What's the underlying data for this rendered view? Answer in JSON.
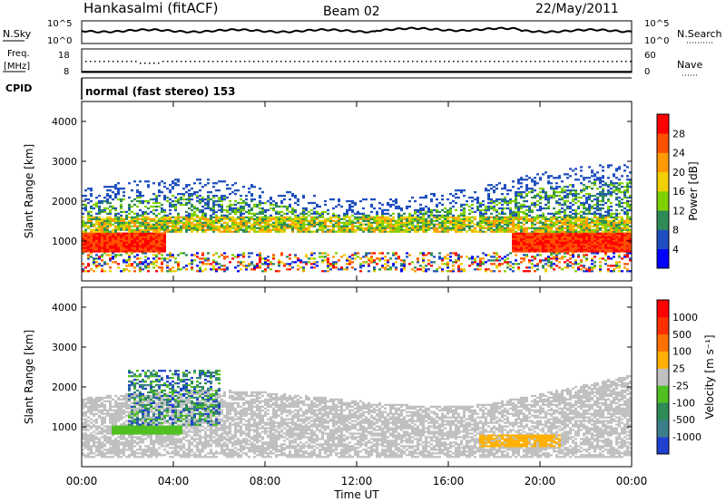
{
  "header": {
    "station": "Hankasalmi (fitACF)",
    "beam": "Beam 02",
    "date": "22/May/2011"
  },
  "top_panel": {
    "left_label": "N.Sky",
    "right_label": "N.Search",
    "left_ticks": [
      "10^5",
      "10^0"
    ],
    "right_ticks": [
      "10^5",
      "10^0"
    ]
  },
  "freq_panel": {
    "left_label_1": "Freq.",
    "left_label_2": "[MHz]",
    "right_label": "Nave",
    "left_ticks": [
      "18",
      "8"
    ],
    "right_ticks": [
      "60",
      "0"
    ]
  },
  "cpid": {
    "label": "CPID",
    "value": "normal (fast stereo) 153"
  },
  "chart_data": [
    {
      "type": "heatmap",
      "ylabel": "Slant Range [km]",
      "yticks": [
        "1000",
        "2000",
        "3000",
        "4000"
      ],
      "colorbar_label": "Power [dB]",
      "colorbar_ticks": [
        "28",
        "24",
        "20",
        "16",
        "12",
        "8",
        "4"
      ],
      "colors": [
        "#0000ff",
        "#1f4fbf",
        "#2e8b57",
        "#7fd000",
        "#f0d000",
        "#ff9900",
        "#ff5000",
        "#ff0000"
      ]
    },
    {
      "type": "heatmap",
      "ylabel": "Slant Range [km]",
      "yticks": [
        "1000",
        "2000",
        "3000",
        "4000"
      ],
      "colorbar_label": "Velocity [m s⁻¹]",
      "colorbar_ticks": [
        "1000",
        "500",
        "100",
        "25",
        "-25",
        "-100",
        "-500",
        "-1000"
      ],
      "colors": [
        "#2040d0",
        "#3a7f8a",
        "#2e8b57",
        "#50c020",
        "#c0c0c0",
        "#ffb000",
        "#ff7000",
        "#ff3000",
        "#ff0000"
      ]
    }
  ],
  "x_axis": {
    "ticks": [
      "00:00",
      "04:00",
      "08:00",
      "12:00",
      "16:00",
      "20:00",
      "00:00"
    ],
    "label": "Time UT"
  }
}
